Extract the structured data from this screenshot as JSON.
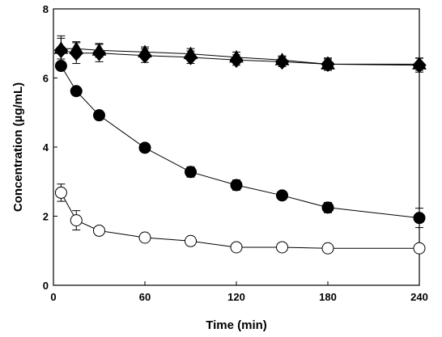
{
  "chart_data": {
    "type": "scatter",
    "xlabel": "Time (min)",
    "ylabel": "Concentration (µg/mL)",
    "xlim": [
      0,
      240
    ],
    "ylim": [
      0,
      8
    ],
    "xticks": [
      0,
      60,
      120,
      180,
      240
    ],
    "yticks": [
      0,
      2,
      4,
      6,
      8
    ],
    "grid": false,
    "legend": false,
    "series": [
      {
        "marker": "diamond",
        "fill": "#000000",
        "points": [
          {
            "x": 5,
            "y": 6.8,
            "err": 0.42
          },
          {
            "x": 15,
            "y": 6.72,
            "err": 0.3
          },
          {
            "x": 30,
            "y": 6.72,
            "err": 0.25
          },
          {
            "x": 60,
            "y": 6.65,
            "err": 0.2
          },
          {
            "x": 90,
            "y": 6.6,
            "err": 0.18
          },
          {
            "x": 120,
            "y": 6.52,
            "err": 0.15
          },
          {
            "x": 150,
            "y": 6.47,
            "err": 0.14
          },
          {
            "x": 180,
            "y": 6.4,
            "err": 0.18
          },
          {
            "x": 240,
            "y": 6.37,
            "err": 0.2
          }
        ]
      },
      {
        "marker": "triangle",
        "fill": "#000000",
        "points": [
          {
            "x": 5,
            "y": 6.85,
            "err": 0.3
          },
          {
            "x": 15,
            "y": 6.85,
            "err": 0.2
          },
          {
            "x": 30,
            "y": 6.8,
            "err": 0.2
          },
          {
            "x": 60,
            "y": 6.75,
            "err": 0.15
          },
          {
            "x": 90,
            "y": 6.7,
            "err": 0.15
          },
          {
            "x": 120,
            "y": 6.6,
            "err": 0.15
          },
          {
            "x": 150,
            "y": 6.52,
            "err": 0.12
          },
          {
            "x": 180,
            "y": 6.4,
            "err": 0.15
          },
          {
            "x": 240,
            "y": 6.4,
            "err": 0.18
          }
        ]
      },
      {
        "marker": "circle",
        "fill": "#000000",
        "points": [
          {
            "x": 5,
            "y": 6.35,
            "err": 0.12
          },
          {
            "x": 15,
            "y": 5.62,
            "err": 0.1
          },
          {
            "x": 30,
            "y": 4.92,
            "err": 0.1
          },
          {
            "x": 60,
            "y": 3.98,
            "err": 0.1
          },
          {
            "x": 90,
            "y": 3.28,
            "err": 0.15
          },
          {
            "x": 120,
            "y": 2.9,
            "err": 0.15
          },
          {
            "x": 150,
            "y": 2.6,
            "err": 0.12
          },
          {
            "x": 180,
            "y": 2.25,
            "err": 0.15
          },
          {
            "x": 240,
            "y": 1.95,
            "err": 0.28
          }
        ]
      },
      {
        "marker": "circle",
        "fill": "#ffffff",
        "points": [
          {
            "x": 5,
            "y": 2.68,
            "err": 0.25
          },
          {
            "x": 15,
            "y": 1.88,
            "err": 0.28
          },
          {
            "x": 30,
            "y": 1.58,
            "err": 0.12
          },
          {
            "x": 60,
            "y": 1.38,
            "err": 0.1
          },
          {
            "x": 90,
            "y": 1.28,
            "err": 0.1
          },
          {
            "x": 120,
            "y": 1.1,
            "err": 0.08
          },
          {
            "x": 150,
            "y": 1.1,
            "err": 0.08
          },
          {
            "x": 180,
            "y": 1.07,
            "err": 0.08
          },
          {
            "x": 240,
            "y": 1.07,
            "err": 0.08
          }
        ]
      }
    ]
  }
}
